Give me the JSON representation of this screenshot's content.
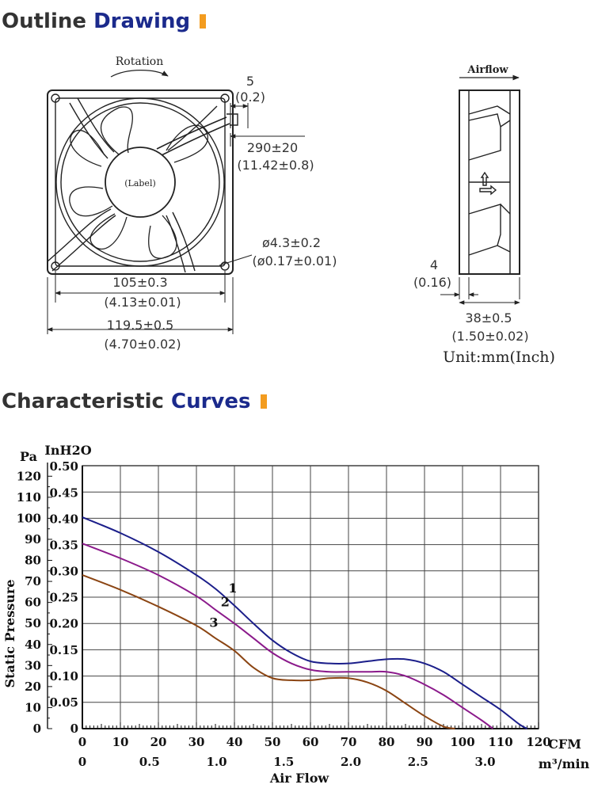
{
  "outline": {
    "title_part1": "Outline",
    "title_part2": "Drawing",
    "rotation_label": "Rotation",
    "airflow_label": "Airflow",
    "label_text": "(Label)",
    "dim_lead_mm": "5",
    "dim_lead_in": "(0.2)",
    "dim_cable_mm": "290±20",
    "dim_cable_in": "(11.42±0.8)",
    "dim_hole_mm": "ø4.3±0.2",
    "dim_hole_in": "(ø0.17±0.01)",
    "dim_pitch_mm": "105±0.3",
    "dim_pitch_in": "(4.13±0.01)",
    "dim_frame_mm": "119.5±0.5",
    "dim_frame_in": "(4.70±0.02)",
    "dim_flange_mm": "4",
    "dim_flange_in": "(0.16)",
    "dim_depth_mm": "38±0.5",
    "dim_depth_in": "(1.50±0.02)",
    "unit_note": "Unit:mm(Inch)"
  },
  "curves": {
    "title_part1": "Characteristic",
    "title_part2": "Curves",
    "marker_color": "#f39c1f",
    "accent_color": "#1b2a8c"
  },
  "chart_data": {
    "type": "line",
    "y_unit_pa": "Pa",
    "y_unit_inh2o": "InH2O",
    "ylabel": "Static Pressure",
    "xlabel": "Air Flow",
    "x_unit_cfm": "CFM",
    "x_unit_m3": "m³/min",
    "xlim": [
      0,
      120
    ],
    "ylim_pa": [
      0,
      125
    ],
    "x_ticks_cfm": [
      "0",
      "10",
      "20",
      "30",
      "40",
      "50",
      "60",
      "70",
      "80",
      "90",
      "100",
      "110",
      "120"
    ],
    "x_ticks_m3": [
      "0",
      "0.5",
      "1.0",
      "1.5",
      "2.0",
      "2.5",
      "3.0"
    ],
    "y_ticks_pa": [
      "0",
      "10",
      "20",
      "30",
      "40",
      "50",
      "60",
      "70",
      "80",
      "90",
      "100",
      "110",
      "120"
    ],
    "y_ticks_inh2o": [
      "0",
      "0.05",
      "0.10",
      "0.15",
      "0.20",
      "0.25",
      "0.30",
      "0.35",
      "0.40",
      "0.45",
      "0.50"
    ],
    "grid": true,
    "series": [
      {
        "name": "1",
        "color": "#1b1e8a",
        "x": [
          0,
          10,
          20,
          30,
          35,
          40,
          45,
          50,
          55,
          60,
          65,
          70,
          75,
          80,
          85,
          90,
          95,
          100,
          105,
          110,
          115,
          117
        ],
        "y": [
          100.5,
          93,
          84,
          73,
          66.5,
          58.5,
          50,
          42,
          36,
          32,
          31,
          31,
          32,
          33,
          33,
          31,
          27,
          21,
          15,
          9,
          2,
          0
        ]
      },
      {
        "name": "2",
        "color": "#8b1a8b",
        "x": [
          0,
          10,
          20,
          30,
          35,
          40,
          45,
          50,
          55,
          60,
          65,
          70,
          75,
          80,
          85,
          90,
          95,
          100,
          105,
          108
        ],
        "y": [
          88,
          81,
          73,
          63,
          56.5,
          50,
          43,
          36,
          31,
          28,
          27,
          27,
          27,
          27,
          25,
          21,
          16,
          10,
          4,
          0
        ]
      },
      {
        "name": "3",
        "color": "#8b4513",
        "x": [
          0,
          10,
          20,
          30,
          35,
          40,
          45,
          50,
          55,
          60,
          65,
          70,
          75,
          80,
          85,
          90,
          95,
          98
        ],
        "y": [
          73,
          66,
          58,
          49,
          43,
          37,
          29,
          24,
          23,
          23,
          24,
          24,
          22,
          18,
          12,
          6,
          1,
          0
        ]
      }
    ]
  }
}
